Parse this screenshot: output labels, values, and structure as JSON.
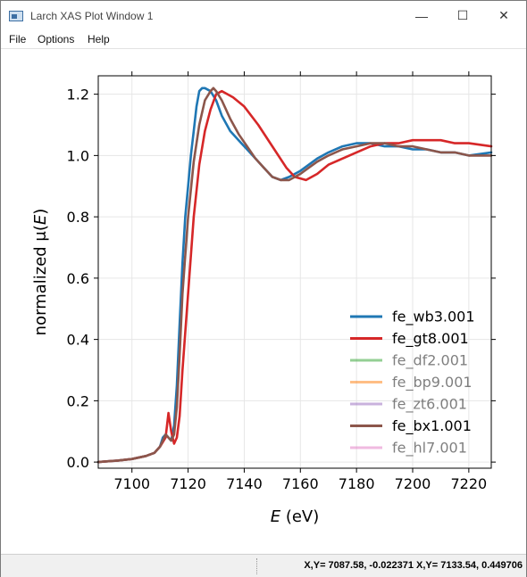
{
  "window": {
    "title": "Larch XAS Plot Window 1",
    "minimize_glyph": "—",
    "maximize_glyph": "☐",
    "close_glyph": "✕"
  },
  "menu": {
    "items": [
      "File",
      "Options",
      "Help"
    ]
  },
  "status": {
    "text": "X,Y= 7087.58, -0.022371 X,Y= 7133.54, 0.449706"
  },
  "chart_data": {
    "type": "line",
    "xlabel_var": "E",
    "xlabel_unit": " (eV)",
    "ylabel_pre": "normalized μ(",
    "ylabel_var": "E",
    "ylabel_post": ")",
    "xlim": [
      7088,
      7228
    ],
    "ylim": [
      -0.02,
      1.26
    ],
    "xticks": [
      7100,
      7120,
      7140,
      7160,
      7180,
      7200,
      7220
    ],
    "yticks": [
      0.0,
      0.2,
      0.4,
      0.6,
      0.8,
      1.0,
      1.2
    ],
    "xtick_labels": [
      "7100",
      "7120",
      "7140",
      "7160",
      "7180",
      "7200",
      "7220"
    ],
    "ytick_labels": [
      "0.0",
      "0.2",
      "0.4",
      "0.6",
      "0.8",
      "1.0",
      "1.2"
    ],
    "grid": true,
    "legend_position": "lower-right",
    "series": [
      {
        "name": "fe_wb3.001",
        "color": "#1f77b4",
        "visible": true,
        "x": [
          7088,
          7095,
          7100,
          7105,
          7108,
          7110,
          7111,
          7112,
          7113,
          7114,
          7115,
          7116,
          7117,
          7118,
          7119,
          7120,
          7121,
          7122,
          7123,
          7124,
          7125,
          7126,
          7128,
          7130,
          7132,
          7135,
          7138,
          7141,
          7144,
          7147,
          7150,
          7153,
          7156,
          7160,
          7163,
          7166,
          7170,
          7175,
          7180,
          7185,
          7190,
          7195,
          7200,
          7205,
          7210,
          7215,
          7220,
          7228
        ],
        "y": [
          0.0,
          0.005,
          0.01,
          0.02,
          0.03,
          0.05,
          0.08,
          0.09,
          0.08,
          0.07,
          0.12,
          0.25,
          0.45,
          0.65,
          0.8,
          0.9,
          1.0,
          1.08,
          1.16,
          1.21,
          1.22,
          1.22,
          1.21,
          1.18,
          1.13,
          1.08,
          1.05,
          1.02,
          0.99,
          0.96,
          0.93,
          0.92,
          0.93,
          0.95,
          0.97,
          0.99,
          1.01,
          1.03,
          1.04,
          1.04,
          1.03,
          1.03,
          1.02,
          1.02,
          1.01,
          1.01,
          1.0,
          1.01
        ]
      },
      {
        "name": "fe_gt8.001",
        "color": "#d62728",
        "visible": true,
        "x": [
          7088,
          7095,
          7100,
          7105,
          7108,
          7110,
          7112,
          7113,
          7114,
          7115,
          7116,
          7117,
          7118,
          7120,
          7122,
          7124,
          7126,
          7128,
          7130,
          7132,
          7134,
          7136,
          7140,
          7145,
          7150,
          7155,
          7158,
          7162,
          7166,
          7170,
          7175,
          7180,
          7185,
          7190,
          7195,
          7200,
          7205,
          7210,
          7215,
          7220,
          7228
        ],
        "y": [
          0.0,
          0.005,
          0.01,
          0.02,
          0.03,
          0.05,
          0.08,
          0.16,
          0.1,
          0.06,
          0.08,
          0.15,
          0.3,
          0.55,
          0.8,
          0.97,
          1.08,
          1.15,
          1.2,
          1.21,
          1.2,
          1.19,
          1.16,
          1.1,
          1.03,
          0.96,
          0.93,
          0.92,
          0.94,
          0.97,
          0.99,
          1.01,
          1.03,
          1.04,
          1.04,
          1.05,
          1.05,
          1.05,
          1.04,
          1.04,
          1.03
        ]
      },
      {
        "name": "fe_df2.001",
        "color": "#2ca02c",
        "visible": false,
        "x": [],
        "y": []
      },
      {
        "name": "fe_bp9.001",
        "color": "#ff7f0e",
        "visible": false,
        "x": [],
        "y": []
      },
      {
        "name": "fe_zt6.001",
        "color": "#9467bd",
        "visible": false,
        "x": [],
        "y": []
      },
      {
        "name": "fe_bx1.001",
        "color": "#8c564b",
        "visible": true,
        "x": [
          7088,
          7095,
          7100,
          7105,
          7108,
          7110,
          7111,
          7112,
          7113,
          7114,
          7115,
          7116,
          7117,
          7118,
          7120,
          7122,
          7124,
          7126,
          7128,
          7129,
          7130,
          7132,
          7135,
          7138,
          7141,
          7144,
          7147,
          7150,
          7153,
          7156,
          7160,
          7163,
          7166,
          7170,
          7175,
          7180,
          7185,
          7190,
          7195,
          7200,
          7205,
          7210,
          7215,
          7220,
          7228
        ],
        "y": [
          0.0,
          0.005,
          0.01,
          0.02,
          0.03,
          0.05,
          0.07,
          0.09,
          0.08,
          0.07,
          0.09,
          0.18,
          0.35,
          0.55,
          0.8,
          0.98,
          1.1,
          1.18,
          1.21,
          1.22,
          1.21,
          1.18,
          1.12,
          1.07,
          1.03,
          0.99,
          0.96,
          0.93,
          0.92,
          0.92,
          0.94,
          0.96,
          0.98,
          1.0,
          1.02,
          1.03,
          1.04,
          1.04,
          1.03,
          1.03,
          1.02,
          1.01,
          1.01,
          1.0,
          1.0
        ]
      },
      {
        "name": "fe_hl7.001",
        "color": "#e377c2",
        "visible": false,
        "x": [],
        "y": []
      }
    ]
  }
}
